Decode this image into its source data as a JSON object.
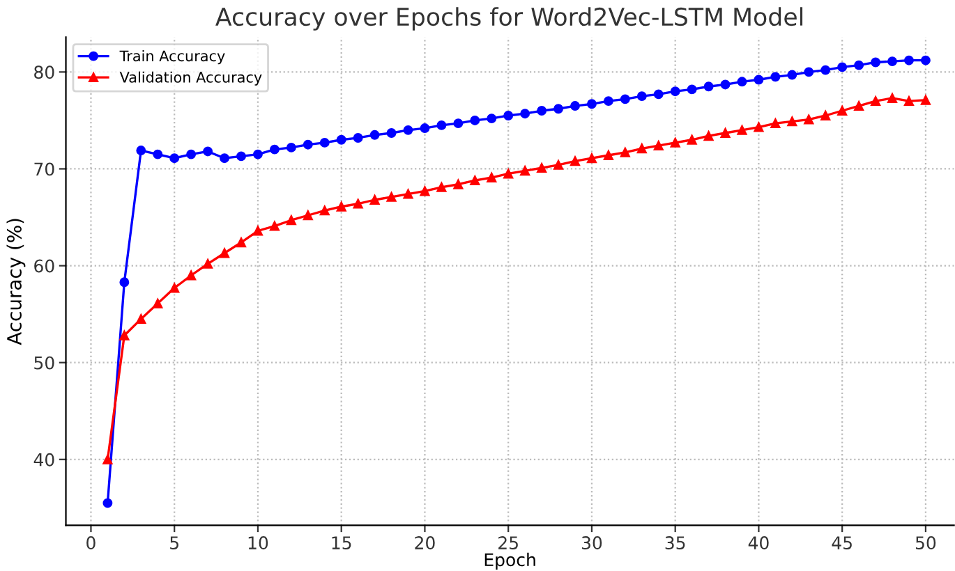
{
  "chart_data": {
    "type": "line",
    "title": "Accuracy over Epochs for Word2Vec-LSTM Model",
    "xlabel": "Epoch",
    "ylabel": "Accuracy (%)",
    "x": [
      1,
      2,
      3,
      4,
      5,
      6,
      7,
      8,
      9,
      10,
      11,
      12,
      13,
      14,
      15,
      16,
      17,
      18,
      19,
      20,
      21,
      22,
      23,
      24,
      25,
      26,
      27,
      28,
      29,
      30,
      31,
      32,
      33,
      34,
      35,
      36,
      37,
      38,
      39,
      40,
      41,
      42,
      43,
      44,
      45,
      46,
      47,
      48,
      49,
      50
    ],
    "series": [
      {
        "name": "Train Accuracy",
        "color": "#0000ff",
        "marker": "circle",
        "values": [
          35.5,
          58.3,
          71.9,
          71.5,
          71.1,
          71.5,
          71.8,
          71.1,
          71.3,
          71.5,
          72.0,
          72.2,
          72.5,
          72.7,
          73.0,
          73.2,
          73.5,
          73.7,
          74.0,
          74.2,
          74.5,
          74.7,
          75.0,
          75.2,
          75.5,
          75.7,
          76.0,
          76.2,
          76.5,
          76.7,
          77.0,
          77.2,
          77.5,
          77.7,
          78.0,
          78.2,
          78.5,
          78.7,
          79.0,
          79.2,
          79.5,
          79.7,
          80.0,
          80.2,
          80.5,
          80.7,
          81.0,
          81.1,
          81.2,
          81.2
        ]
      },
      {
        "name": "Validation Accuracy",
        "color": "#ff0000",
        "marker": "triangle",
        "values": [
          40.0,
          52.8,
          54.5,
          56.1,
          57.7,
          59.0,
          60.2,
          61.3,
          62.4,
          63.6,
          64.1,
          64.7,
          65.2,
          65.7,
          66.1,
          66.4,
          66.8,
          67.1,
          67.4,
          67.7,
          68.1,
          68.4,
          68.8,
          69.1,
          69.5,
          69.8,
          70.1,
          70.4,
          70.8,
          71.1,
          71.4,
          71.7,
          72.1,
          72.4,
          72.7,
          73.0,
          73.4,
          73.7,
          74.0,
          74.3,
          74.7,
          74.9,
          75.1,
          75.5,
          76.0,
          76.5,
          77.0,
          77.3,
          77.0,
          77.1
        ]
      }
    ],
    "xlim": [
      -1.5,
      51.7
    ],
    "ylim": [
      33.2,
      83.6
    ],
    "xticks": [
      0,
      5,
      10,
      15,
      20,
      25,
      30,
      35,
      40,
      45,
      50
    ],
    "yticks": [
      40,
      50,
      60,
      70,
      80
    ],
    "grid": true,
    "legend": "top left",
    "line_style": "solid"
  }
}
